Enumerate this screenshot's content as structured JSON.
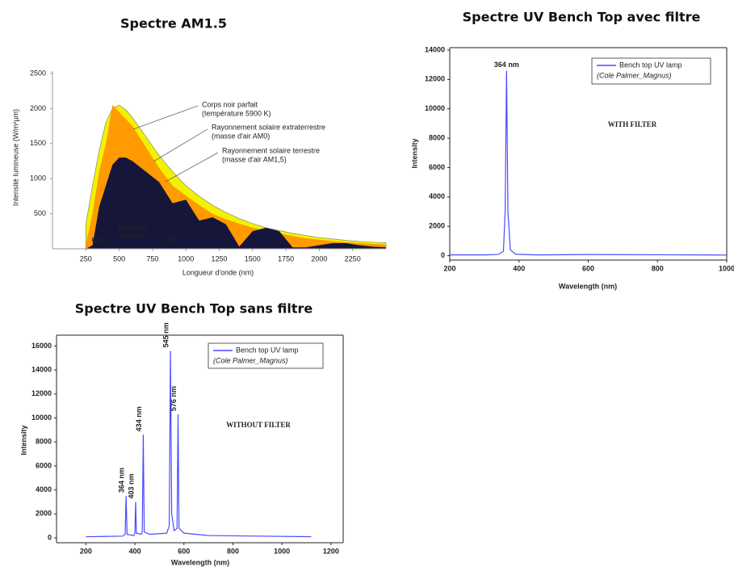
{
  "chart_data": [
    {
      "type": "area",
      "title": "Spectre AM1.5",
      "x_label": "Longueur d'onde (nm)",
      "y_label": "Intensité lumineuse (W/m²µm)",
      "x": [
        250,
        300,
        350,
        400,
        450,
        500,
        550,
        600,
        700,
        800,
        900,
        1000,
        1100,
        1200,
        1300,
        1400,
        1500,
        1600,
        1700,
        1800,
        1900,
        2000,
        2100,
        2200,
        2300,
        2400,
        2500
      ],
      "series": [
        {
          "name": "Corps noir parfait",
          "note": "(température 5900 K)",
          "color": "#f2f200",
          "values": [
            350,
            900,
            1400,
            1800,
            2000,
            2050,
            1980,
            1870,
            1600,
            1330,
            1100,
            900,
            750,
            620,
            520,
            430,
            360,
            300,
            260,
            220,
            190,
            160,
            140,
            120,
            105,
            95,
            85
          ]
        },
        {
          "name": "Rayonnement solaire extraterrestre",
          "note": "(masse d'air AM0)",
          "color": "#ff9a00",
          "values": [
            60,
            500,
            1100,
            1500,
            2050,
            1950,
            1850,
            1750,
            1450,
            1150,
            900,
            760,
            620,
            500,
            420,
            360,
            300,
            260,
            220,
            180,
            150,
            130,
            110,
            95,
            80,
            70,
            60
          ]
        },
        {
          "name": "Rayonnement solaire terrestre",
          "note": "(masse d'air AM1,5)",
          "color": "#15163a",
          "values": [
            0,
            50,
            600,
            900,
            1200,
            1300,
            1300,
            1250,
            1100,
            950,
            650,
            700,
            400,
            450,
            350,
            30,
            250,
            300,
            250,
            20,
            20,
            50,
            80,
            80,
            50,
            30,
            20
          ]
        }
      ],
      "region_labels": [
        [
          "UV"
        ],
        [
          "Domaine",
          "visible"
        ],
        [
          "IR"
        ]
      ],
      "xlim": [
        0,
        2500
      ],
      "ylim": [
        0,
        2500
      ],
      "xticks": [
        250,
        500,
        750,
        1000,
        1250,
        1500,
        1750,
        2000,
        2250
      ],
      "yticks": [
        500,
        1000,
        1500,
        2000,
        2500
      ]
    },
    {
      "type": "line",
      "title": "Spectre UV Bench Top avec filtre",
      "x_label": "Wavelength (nm)",
      "y_label": "Intensity",
      "x": [
        200,
        300,
        340,
        355,
        360,
        364,
        368,
        375,
        390,
        450,
        600,
        800,
        1000
      ],
      "series": [
        {
          "name": "Bench top UV lamp",
          "note": "(Cole Palmer_Magnus)",
          "color": "#4a4aff",
          "values": [
            50,
            50,
            80,
            300,
            3000,
            12600,
            3000,
            400,
            100,
            50,
            80,
            60,
            40
          ]
        }
      ],
      "peak_labels": [
        {
          "value": 364,
          "label": "364 nm"
        }
      ],
      "peak_label_color": "#2b2bdd",
      "annotation": "WITH FILTER",
      "annotation_color": "#e01b1b",
      "xlim": [
        200,
        1000
      ],
      "ylim": [
        -300,
        14000
      ],
      "xticks": [
        200,
        400,
        600,
        800,
        1000
      ],
      "yticks": [
        0,
        2000,
        4000,
        6000,
        8000,
        10000,
        12000,
        14000
      ]
    },
    {
      "type": "line",
      "title": "Spectre UV Bench Top sans filtre",
      "x_label": "Wavelength (nm)",
      "y_label": "Intensity",
      "x": [
        200,
        350,
        360,
        364,
        368,
        395,
        400,
        403,
        406,
        425,
        430,
        434,
        438,
        460,
        530,
        540,
        545,
        550,
        560,
        572,
        576,
        580,
        600,
        700,
        900,
        1120
      ],
      "series": [
        {
          "name": "Bench top UV lamp",
          "note": "(Cole Palmer_Magnus)",
          "color": "#4a4aff",
          "values": [
            100,
            150,
            300,
            3500,
            300,
            200,
            400,
            3000,
            400,
            300,
            500,
            8600,
            500,
            300,
            400,
            1000,
            15600,
            2000,
            600,
            800,
            10300,
            800,
            400,
            200,
            150,
            100
          ]
        }
      ],
      "peak_labels": [
        {
          "value": 364,
          "label": "364 nm"
        },
        {
          "value": 403,
          "label": "403 nm"
        },
        {
          "value": 434,
          "label": "434 nm"
        },
        {
          "value": 545,
          "label": "545 nm"
        },
        {
          "value": 576,
          "label": "576 nm"
        }
      ],
      "peak_label_color": "#e01b1b",
      "annotation": "WITHOUT FILTER",
      "annotation_color": "#e01b1b",
      "xlim": [
        80,
        1250
      ],
      "ylim": [
        -400,
        16700
      ],
      "xticks": [
        200,
        400,
        600,
        800,
        1000,
        1200
      ],
      "yticks": [
        0,
        2000,
        4000,
        6000,
        8000,
        10000,
        12000,
        14000,
        16000
      ]
    }
  ]
}
